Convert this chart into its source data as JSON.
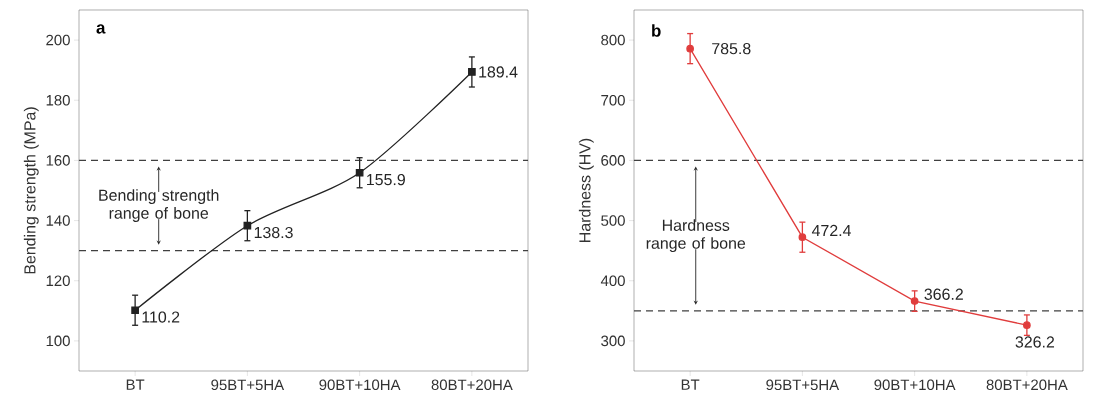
{
  "chart_data": [
    {
      "type": "line",
      "title": "a",
      "ylabel": "Bending strength (MPa)",
      "categories": [
        "BT",
        "95BT+5HA",
        "90BT+10HA",
        "80BT+20HA"
      ],
      "series": [
        {
          "color": "#222222",
          "values": [
            110.2,
            138.3,
            155.9,
            189.4
          ],
          "errors": [
            5,
            5,
            5,
            5
          ]
        }
      ],
      "ylim": [
        90,
        210
      ],
      "yticks": [
        100,
        120,
        140,
        160,
        180,
        200
      ],
      "ref_lines": [
        {
          "axis": "y",
          "value": 160,
          "line_style": "dashed"
        },
        {
          "axis": "y",
          "value": 130,
          "line_style": "dashed"
        }
      ],
      "annotations": [
        "Bending strength range of bone"
      ],
      "data_labels": true,
      "marker": "square",
      "line_style": "solid"
    },
    {
      "type": "line",
      "title": "b",
      "ylabel": "Hardness (HV)",
      "categories": [
        "BT",
        "95BT+5HA",
        "90BT+10HA",
        "80BT+20HA"
      ],
      "series": [
        {
          "color": "#e03c3c",
          "values": [
            785.8,
            472.4,
            366.2,
            326.2
          ],
          "errors": [
            25,
            25,
            17,
            17
          ]
        }
      ],
      "ylim": [
        250,
        850
      ],
      "yticks": [
        300,
        400,
        500,
        600,
        700,
        800
      ],
      "ref_lines": [
        {
          "axis": "y",
          "value": 600,
          "line_style": "dashed"
        },
        {
          "axis": "y",
          "value": 350,
          "line_style": "dashed"
        }
      ],
      "annotations": [
        "Hardness range of bone"
      ],
      "data_labels": true,
      "marker": "circle",
      "line_style": "solid"
    }
  ]
}
